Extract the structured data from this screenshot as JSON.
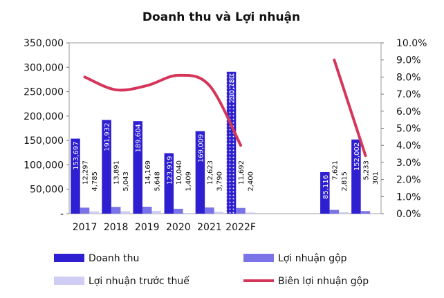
{
  "chart_data": {
    "type": "bar",
    "title": "Doanh thu và Lợi nhuận",
    "categories": [
      "2017",
      "2018",
      "2019",
      "2020",
      "2021",
      "2022F",
      "",
      "",
      "",
      ""
    ],
    "y_left": {
      "ylim": [
        0,
        350000
      ],
      "ticks": [
        "-",
        "50,000",
        "100,000",
        "150,000",
        "200,000",
        "250,000",
        "300,000",
        "350,000"
      ]
    },
    "y_right": {
      "ylim": [
        0,
        10
      ],
      "ticks": [
        "0.0%",
        "1.0%",
        "2.0%",
        "3.0%",
        "4.0%",
        "5.0%",
        "6.0%",
        "7.0%",
        "8.0%",
        "9.0%",
        "10.0%"
      ]
    },
    "series": [
      {
        "name": "Doanh thu",
        "kind": "bar",
        "color": "#2e1fd0",
        "values": [
          153697,
          191932,
          189604,
          123919,
          169009,
          290780,
          null,
          null,
          85116,
          152002
        ],
        "labels": [
          "153,697",
          "191,932",
          "189,604",
          "123,919",
          "169,009",
          "290,780",
          "",
          "",
          "85,116",
          "152,002"
        ]
      },
      {
        "name": "Lợi nhuận gộp",
        "kind": "bar",
        "color": "#7b74e8",
        "values": [
          12297,
          13891,
          14169,
          10040,
          12623,
          11692,
          null,
          null,
          7621,
          5233
        ],
        "labels": [
          "12,297",
          "13,891",
          "14,169",
          "10,040",
          "12,623",
          "11,692",
          "",
          "",
          "7,621",
          "5,233"
        ]
      },
      {
        "name": "Lợi nhuận trước thuế",
        "kind": "bar",
        "color": "#cfcdf3",
        "values": [
          4785,
          5043,
          5648,
          1409,
          3790,
          2400,
          null,
          null,
          2815,
          301
        ],
        "labels": [
          "4,785",
          "5,043",
          "5,648",
          "1,409",
          "3,790",
          "2,400",
          "",
          "",
          "2,815",
          "301"
        ]
      },
      {
        "name": "Biên lợi nhuận gộp",
        "kind": "line",
        "axis": "right",
        "color": "#d6355a",
        "values": [
          8.0,
          7.25,
          7.5,
          8.1,
          7.5,
          4.0,
          null,
          null,
          9.0,
          3.4
        ]
      }
    ],
    "hatched_category": "2022F",
    "legend": "bottom"
  }
}
